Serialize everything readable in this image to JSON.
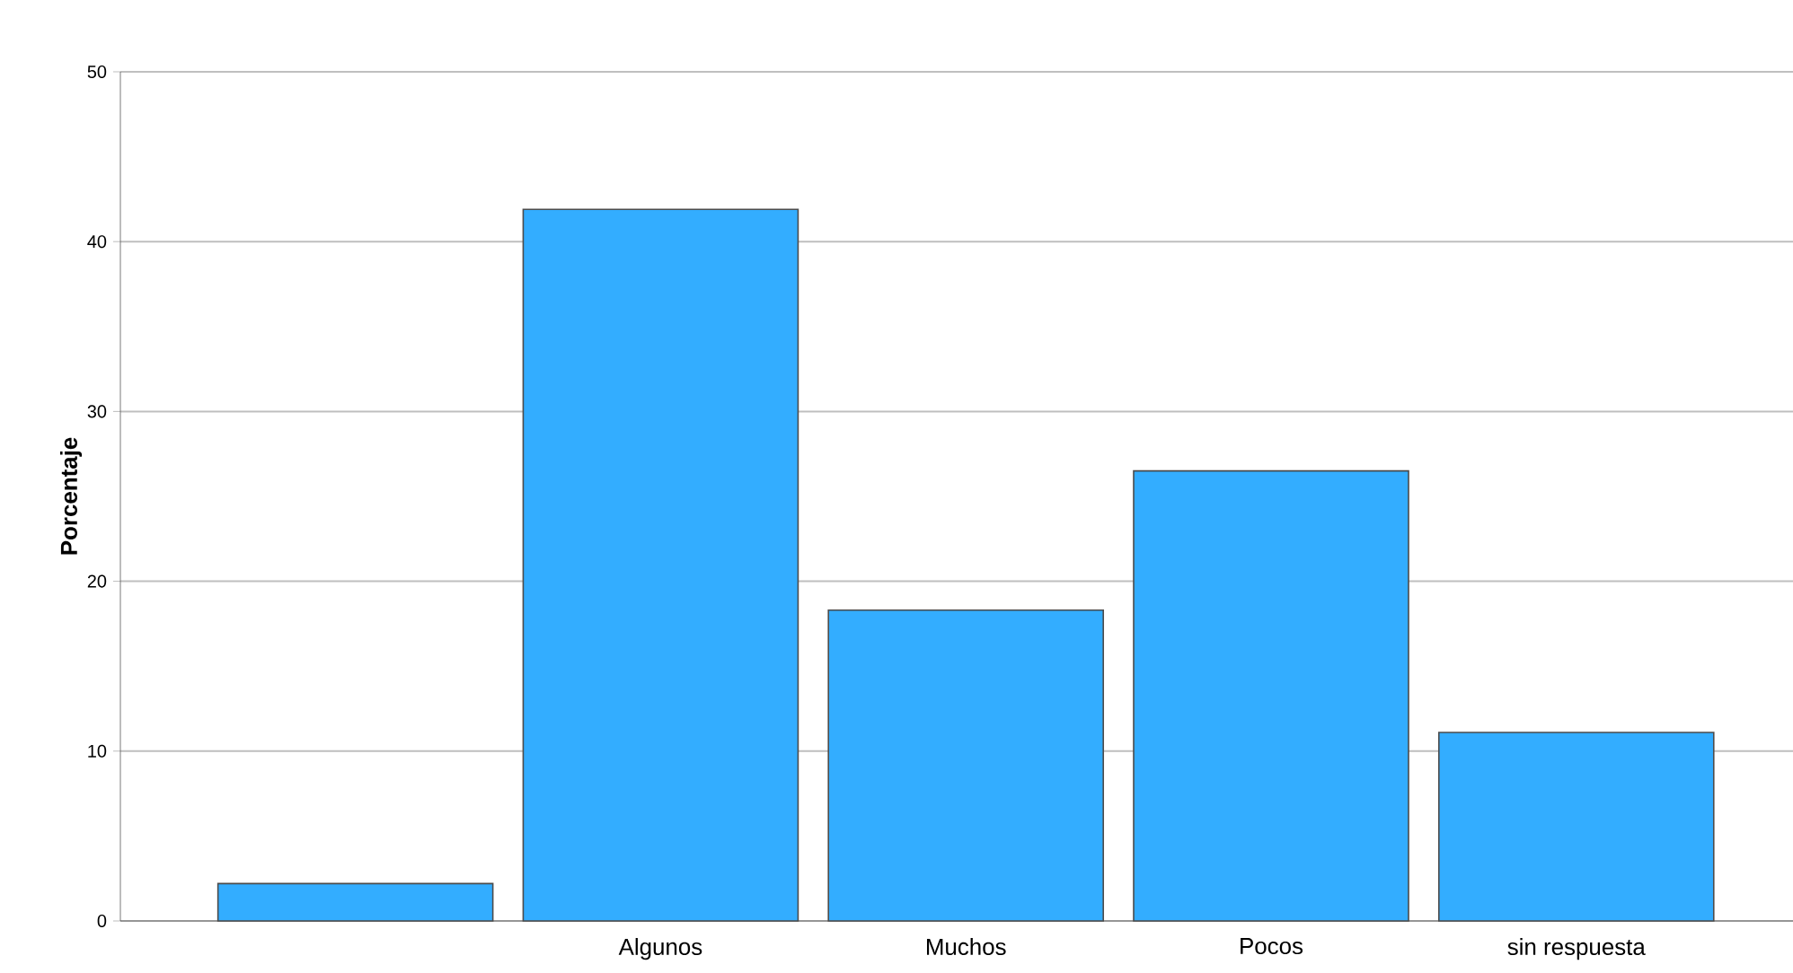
{
  "chart_data": {
    "type": "bar",
    "ylabel": "Porcentaje",
    "categories": [
      null,
      "Algunos",
      "Muchos",
      "Pocos",
      "sin respuesta"
    ],
    "values": [
      2.2,
      41.9,
      18.3,
      26.5,
      11.1
    ],
    "color": "#33adff",
    "ylim": [
      0,
      50
    ],
    "yticks": [
      0,
      10,
      20,
      30,
      40,
      50
    ],
    "grid": "y"
  }
}
